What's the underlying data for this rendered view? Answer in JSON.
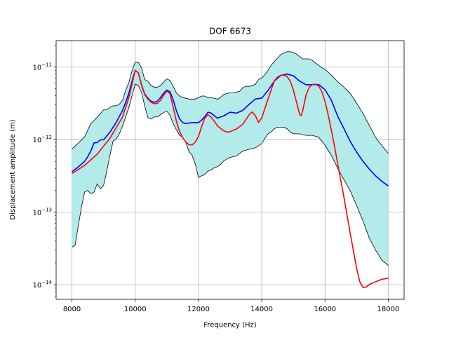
{
  "chart_data": {
    "type": "line",
    "title": "DOF 6673",
    "xlabel": "Frequency (Hz)",
    "ylabel": "Displacement amplitude (m)",
    "xlim": [
      7500,
      18500
    ],
    "ylim": [
      6.3e-15,
      2.3e-11
    ],
    "y_scale": "log",
    "grid": true,
    "x_ticks": [
      8000,
      10000,
      12000,
      14000,
      16000,
      18000
    ],
    "x_tick_labels": [
      "8000",
      "10000",
      "12000",
      "14000",
      "16000",
      "18000"
    ],
    "y_ticks": [
      1e-14,
      1e-13,
      1e-12,
      1e-11
    ],
    "y_tick_labels": [
      {
        "base": "10",
        "exp": "−14"
      },
      {
        "base": "10",
        "exp": "−13"
      },
      {
        "base": "10",
        "exp": "−12"
      },
      {
        "base": "10",
        "exp": "−11"
      }
    ],
    "band": {
      "color": "#b2ebea",
      "edge_color": "#000000",
      "upper": {
        "x": [
          8000,
          8200,
          8400,
          8600,
          8800,
          9000,
          9100,
          9200,
          9300,
          9400,
          9500,
          9600,
          9700,
          9800,
          9900,
          10000,
          10100,
          10200,
          10300,
          10400,
          10500,
          10600,
          10700,
          10800,
          10900,
          11000,
          11100,
          11200,
          11300,
          11400,
          11500,
          11600,
          11700,
          11800,
          11900,
          12000,
          12100,
          12200,
          12300,
          12400,
          12500,
          12600,
          12700,
          12800,
          12900,
          13000,
          13100,
          13200,
          13300,
          13400,
          13500,
          13600,
          13700,
          13800,
          13900,
          14000,
          14100,
          14200,
          14300,
          14400,
          14500,
          14600,
          14700,
          14800,
          14900,
          15000,
          15100,
          15200,
          15300,
          15400,
          15500,
          15600,
          15700,
          15800,
          15900,
          16000,
          16200,
          16400,
          16600,
          16800,
          17000,
          17200,
          17400,
          17600,
          17800,
          18000
        ],
        "y": [
          7.4e-13,
          8.9e-13,
          1.09e-12,
          1.66e-12,
          2.03e-12,
          2.56e-12,
          2.56e-12,
          2.77e-12,
          2.92e-12,
          2.92e-12,
          3.07e-12,
          3.49e-12,
          4.79e-12,
          6.09e-12,
          8.87e-12,
          1.16e-11,
          1.16e-11,
          9.68e-12,
          6.68e-12,
          6.37e-12,
          5.54e-12,
          5.26e-12,
          5.26e-12,
          5.54e-12,
          6.22e-12,
          6.83e-12,
          6.51e-12,
          5.41e-12,
          4.39e-12,
          3.99e-12,
          3.79e-12,
          3.7e-12,
          3.61e-12,
          3.61e-12,
          3.61e-12,
          3.78e-12,
          3.97e-12,
          3.97e-12,
          3.78e-12,
          3.79e-12,
          3.7e-12,
          3.6e-12,
          3.8e-12,
          4.19e-12,
          4.29e-12,
          4.4e-12,
          4.4e-12,
          4.5e-12,
          4.62e-12,
          5.17e-12,
          5.4e-12,
          5.4e-12,
          5.52e-12,
          5.78e-12,
          6.73e-12,
          7.04e-12,
          7.87e-12,
          8.99e-12,
          1.06e-11,
          1.19e-11,
          1.33e-11,
          1.47e-11,
          1.56e-11,
          1.62e-11,
          1.62e-11,
          1.58e-11,
          1.5e-11,
          1.38e-11,
          1.29e-11,
          1.29e-11,
          1.29e-11,
          1.23e-11,
          1.13e-11,
          1.05e-11,
          9.77e-12,
          9.26e-12,
          7.71e-12,
          6.25e-12,
          5.26e-12,
          4.29e-12,
          3.17e-12,
          2.29e-12,
          1.57e-12,
          1.07e-12,
          8.19e-13,
          6.47e-13
        ]
      },
      "lower": {
        "x": [
          8000,
          8100,
          8200,
          8300,
          8400,
          8500,
          8600,
          8700,
          8800,
          8900,
          9000,
          9100,
          9200,
          9300,
          9400,
          9500,
          9600,
          9700,
          9800,
          9900,
          10000,
          10100,
          10200,
          10300,
          10400,
          10500,
          10600,
          10700,
          10800,
          10900,
          11000,
          11100,
          11200,
          11300,
          11400,
          11500,
          11600,
          11700,
          11800,
          11900,
          12000,
          12100,
          12200,
          12300,
          12400,
          12500,
          12600,
          12700,
          12800,
          12900,
          13000,
          13200,
          13400,
          13600,
          13800,
          14000,
          14100,
          14200,
          14300,
          14400,
          14500,
          14600,
          14700,
          14800,
          14900,
          15000,
          15200,
          15400,
          15600,
          15800,
          16000,
          16200,
          16400,
          16600,
          16800,
          17000,
          17200,
          17400,
          17600,
          17800,
          18000
        ],
        "y": [
          3.3e-14,
          3.5e-14,
          6.4e-14,
          1.17e-13,
          1.89e-13,
          1.99e-13,
          1.79e-13,
          1.89e-13,
          2.46e-13,
          2.09e-13,
          2.33e-13,
          3.65e-13,
          6.04e-13,
          9.49e-13,
          1.02e-12,
          1.2e-12,
          1.54e-12,
          2.06e-12,
          2.75e-12,
          4e-12,
          5.8e-12,
          5.55e-12,
          4.42e-12,
          2.91e-12,
          2.01e-12,
          1.91e-12,
          2.05e-12,
          2.05e-12,
          2.21e-12,
          2.36e-12,
          2.46e-12,
          2.15e-12,
          1.66e-12,
          1.37e-12,
          1.15e-12,
          1.07e-12,
          9.13e-13,
          6.82e-13,
          6.03e-13,
          4.61e-13,
          3e-13,
          3.17e-13,
          3.3e-13,
          3.68e-13,
          3.83e-13,
          4.1e-13,
          4.22e-13,
          4.54e-13,
          5.08e-13,
          5.41e-13,
          5.66e-13,
          5.96e-13,
          6.93e-13,
          7.33e-13,
          7.68e-13,
          8.78e-13,
          1.04e-12,
          1.2e-12,
          1.27e-12,
          1.41e-12,
          1.48e-12,
          1.48e-12,
          1.48e-12,
          1.41e-12,
          1.27e-12,
          1.2e-12,
          1.2e-12,
          1.14e-12,
          1.14e-12,
          1.08e-12,
          8.38e-13,
          6.04e-13,
          4.02e-13,
          2.8e-13,
          1.96e-13,
          1.23e-13,
          7.58e-14,
          4.39e-14,
          3e-14,
          2.17e-14,
          1.85e-14
        ]
      }
    },
    "series": [
      {
        "color": "#0000ff",
        "x": [
          8000,
          8200,
          8400,
          8500,
          8600,
          8700,
          8800,
          8900,
          9000,
          9200,
          9400,
          9600,
          9700,
          9800,
          9900,
          10000,
          10100,
          10200,
          10300,
          10400,
          10500,
          10600,
          10700,
          10800,
          10900,
          11000,
          11100,
          11200,
          11300,
          11400,
          11500,
          11600,
          11800,
          12000,
          12100,
          12200,
          12300,
          12400,
          12500,
          12600,
          12800,
          13000,
          13200,
          13400,
          13600,
          13800,
          14000,
          14200,
          14400,
          14600,
          14800,
          15000,
          15200,
          15400,
          15600,
          15800,
          16000,
          16200,
          16400,
          16600,
          16800,
          17000,
          17200,
          17400,
          17600,
          17800,
          18000
        ],
        "y": [
          3.6e-13,
          4.2e-13,
          5e-13,
          5.8e-13,
          7e-13,
          9e-13,
          9.1e-13,
          9.9e-13,
          9.9e-13,
          1.26e-12,
          1.73e-12,
          2.51e-12,
          3.27e-12,
          4.36e-12,
          6.35e-12,
          8.98e-12,
          8.27e-12,
          5.66e-12,
          4.25e-12,
          3.72e-12,
          3.37e-12,
          3.26e-12,
          3.38e-12,
          3.79e-12,
          4.37e-12,
          4.8e-12,
          4.55e-12,
          3.53e-12,
          2.51e-12,
          1.94e-12,
          1.71e-12,
          1.66e-12,
          1.71e-12,
          1.71e-12,
          1.85e-12,
          2.07e-12,
          2.38e-12,
          2.31e-12,
          2.12e-12,
          1.97e-12,
          2.12e-12,
          2.38e-12,
          2.31e-12,
          2.52e-12,
          3.05e-12,
          3.61e-12,
          3.72e-12,
          4.75e-12,
          6.41e-12,
          7.62e-12,
          7.99e-12,
          7.55e-12,
          6.36e-12,
          5.68e-12,
          5.71e-12,
          5.71e-12,
          4.85e-12,
          3.49e-12,
          2.1e-12,
          1.41e-12,
          9.37e-13,
          6.71e-13,
          5.01e-13,
          3.92e-13,
          3.16e-13,
          2.65e-13,
          2.3e-13
        ]
      },
      {
        "color": "#ff0000",
        "x": [
          8000,
          8400,
          8800,
          9200,
          9600,
          9800,
          9900,
          10000,
          10100,
          10200,
          10300,
          10400,
          10500,
          10600,
          10700,
          10800,
          10900,
          11000,
          11100,
          11200,
          11300,
          11400,
          11500,
          11600,
          11700,
          11800,
          11900,
          12000,
          12100,
          12200,
          12300,
          12400,
          12500,
          12600,
          12700,
          12800,
          12900,
          13000,
          13200,
          13400,
          13600,
          13700,
          13800,
          13900,
          14000,
          14200,
          14400,
          14500,
          14600,
          14700,
          14800,
          14900,
          15000,
          15100,
          15200,
          15250,
          15300,
          15400,
          15500,
          15600,
          15700,
          15800,
          15900,
          16000,
          16100,
          16200,
          16300,
          16400,
          16600,
          16800,
          17000,
          17100,
          17200,
          17300,
          17400,
          17600,
          17800,
          18000
        ],
        "y": [
          3.4e-13,
          4.4e-13,
          6.3e-13,
          1.04e-12,
          2.05e-12,
          3.81e-12,
          5.8e-12,
          8.98e-12,
          8.27e-12,
          5.58e-12,
          4.16e-12,
          3.61e-12,
          3.27e-12,
          3.11e-12,
          3.15e-12,
          3.46e-12,
          4.1e-12,
          4.65e-12,
          4.28e-12,
          2.8e-12,
          1.8e-12,
          1.3e-12,
          1.06e-12,
          9.25e-13,
          8.48e-13,
          8.43e-13,
          9.25e-13,
          1.1e-12,
          1.51e-12,
          1.98e-12,
          2.2e-12,
          2.03e-12,
          1.79e-12,
          1.54e-12,
          1.42e-12,
          1.32e-12,
          1.27e-12,
          1.28e-12,
          1.4e-12,
          1.62e-12,
          2.19e-12,
          2.4e-12,
          2.12e-12,
          1.72e-12,
          1.99e-12,
          3.63e-12,
          6.47e-12,
          7.25e-12,
          7.69e-12,
          7.69e-12,
          7.4e-12,
          6.38e-12,
          4.8e-12,
          3.26e-12,
          2.21e-12,
          2.14e-12,
          2.55e-12,
          4.1e-12,
          5.23e-12,
          5.74e-12,
          5.78e-12,
          5.44e-12,
          4.56e-12,
          3.35e-12,
          2.19e-12,
          1.35e-12,
          8.09e-13,
          4.66e-13,
          1.59e-13,
          5.01e-14,
          1.68e-14,
          1.1e-14,
          9.2e-15,
          9.3e-15,
          1.01e-14,
          1.1e-14,
          1.19e-14,
          1.23e-14
        ]
      }
    ]
  }
}
